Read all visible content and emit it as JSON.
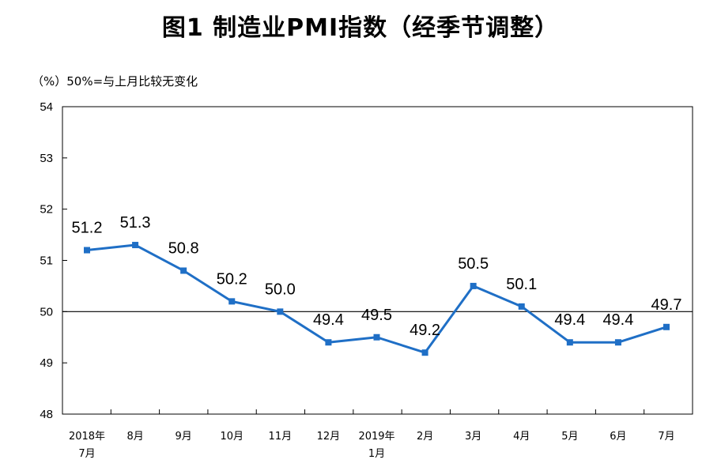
{
  "chart_data": {
    "type": "line",
    "title": "图1 制造业PMI指数（经季节调整）",
    "unit_note": "（%）50%=与上月比较无变化",
    "categories": [
      [
        "2018年",
        "7月"
      ],
      [
        "8月"
      ],
      [
        "9月"
      ],
      [
        "10月"
      ],
      [
        "11月"
      ],
      [
        "12月"
      ],
      [
        "2019年",
        "1月"
      ],
      [
        "2月"
      ],
      [
        "3月"
      ],
      [
        "4月"
      ],
      [
        "5月"
      ],
      [
        "6月"
      ],
      [
        "7月"
      ]
    ],
    "series": [
      {
        "values": [
          51.2,
          51.3,
          50.8,
          50.2,
          50.0,
          49.4,
          49.5,
          49.2,
          50.5,
          50.1,
          49.4,
          49.4,
          49.7
        ],
        "labels": [
          "51.2",
          "51.3",
          "50.8",
          "50.2",
          "50.0",
          "49.4",
          "49.5",
          "49.2",
          "50.5",
          "50.1",
          "49.4",
          "49.4",
          "49.7"
        ],
        "color": "#1f6fc6"
      }
    ],
    "ylim": [
      48,
      54
    ],
    "yticks": [
      48,
      49,
      50,
      51,
      52,
      53,
      54
    ],
    "reference_line": 50,
    "reference_color": "#000000",
    "grid": false,
    "legend": "none"
  }
}
